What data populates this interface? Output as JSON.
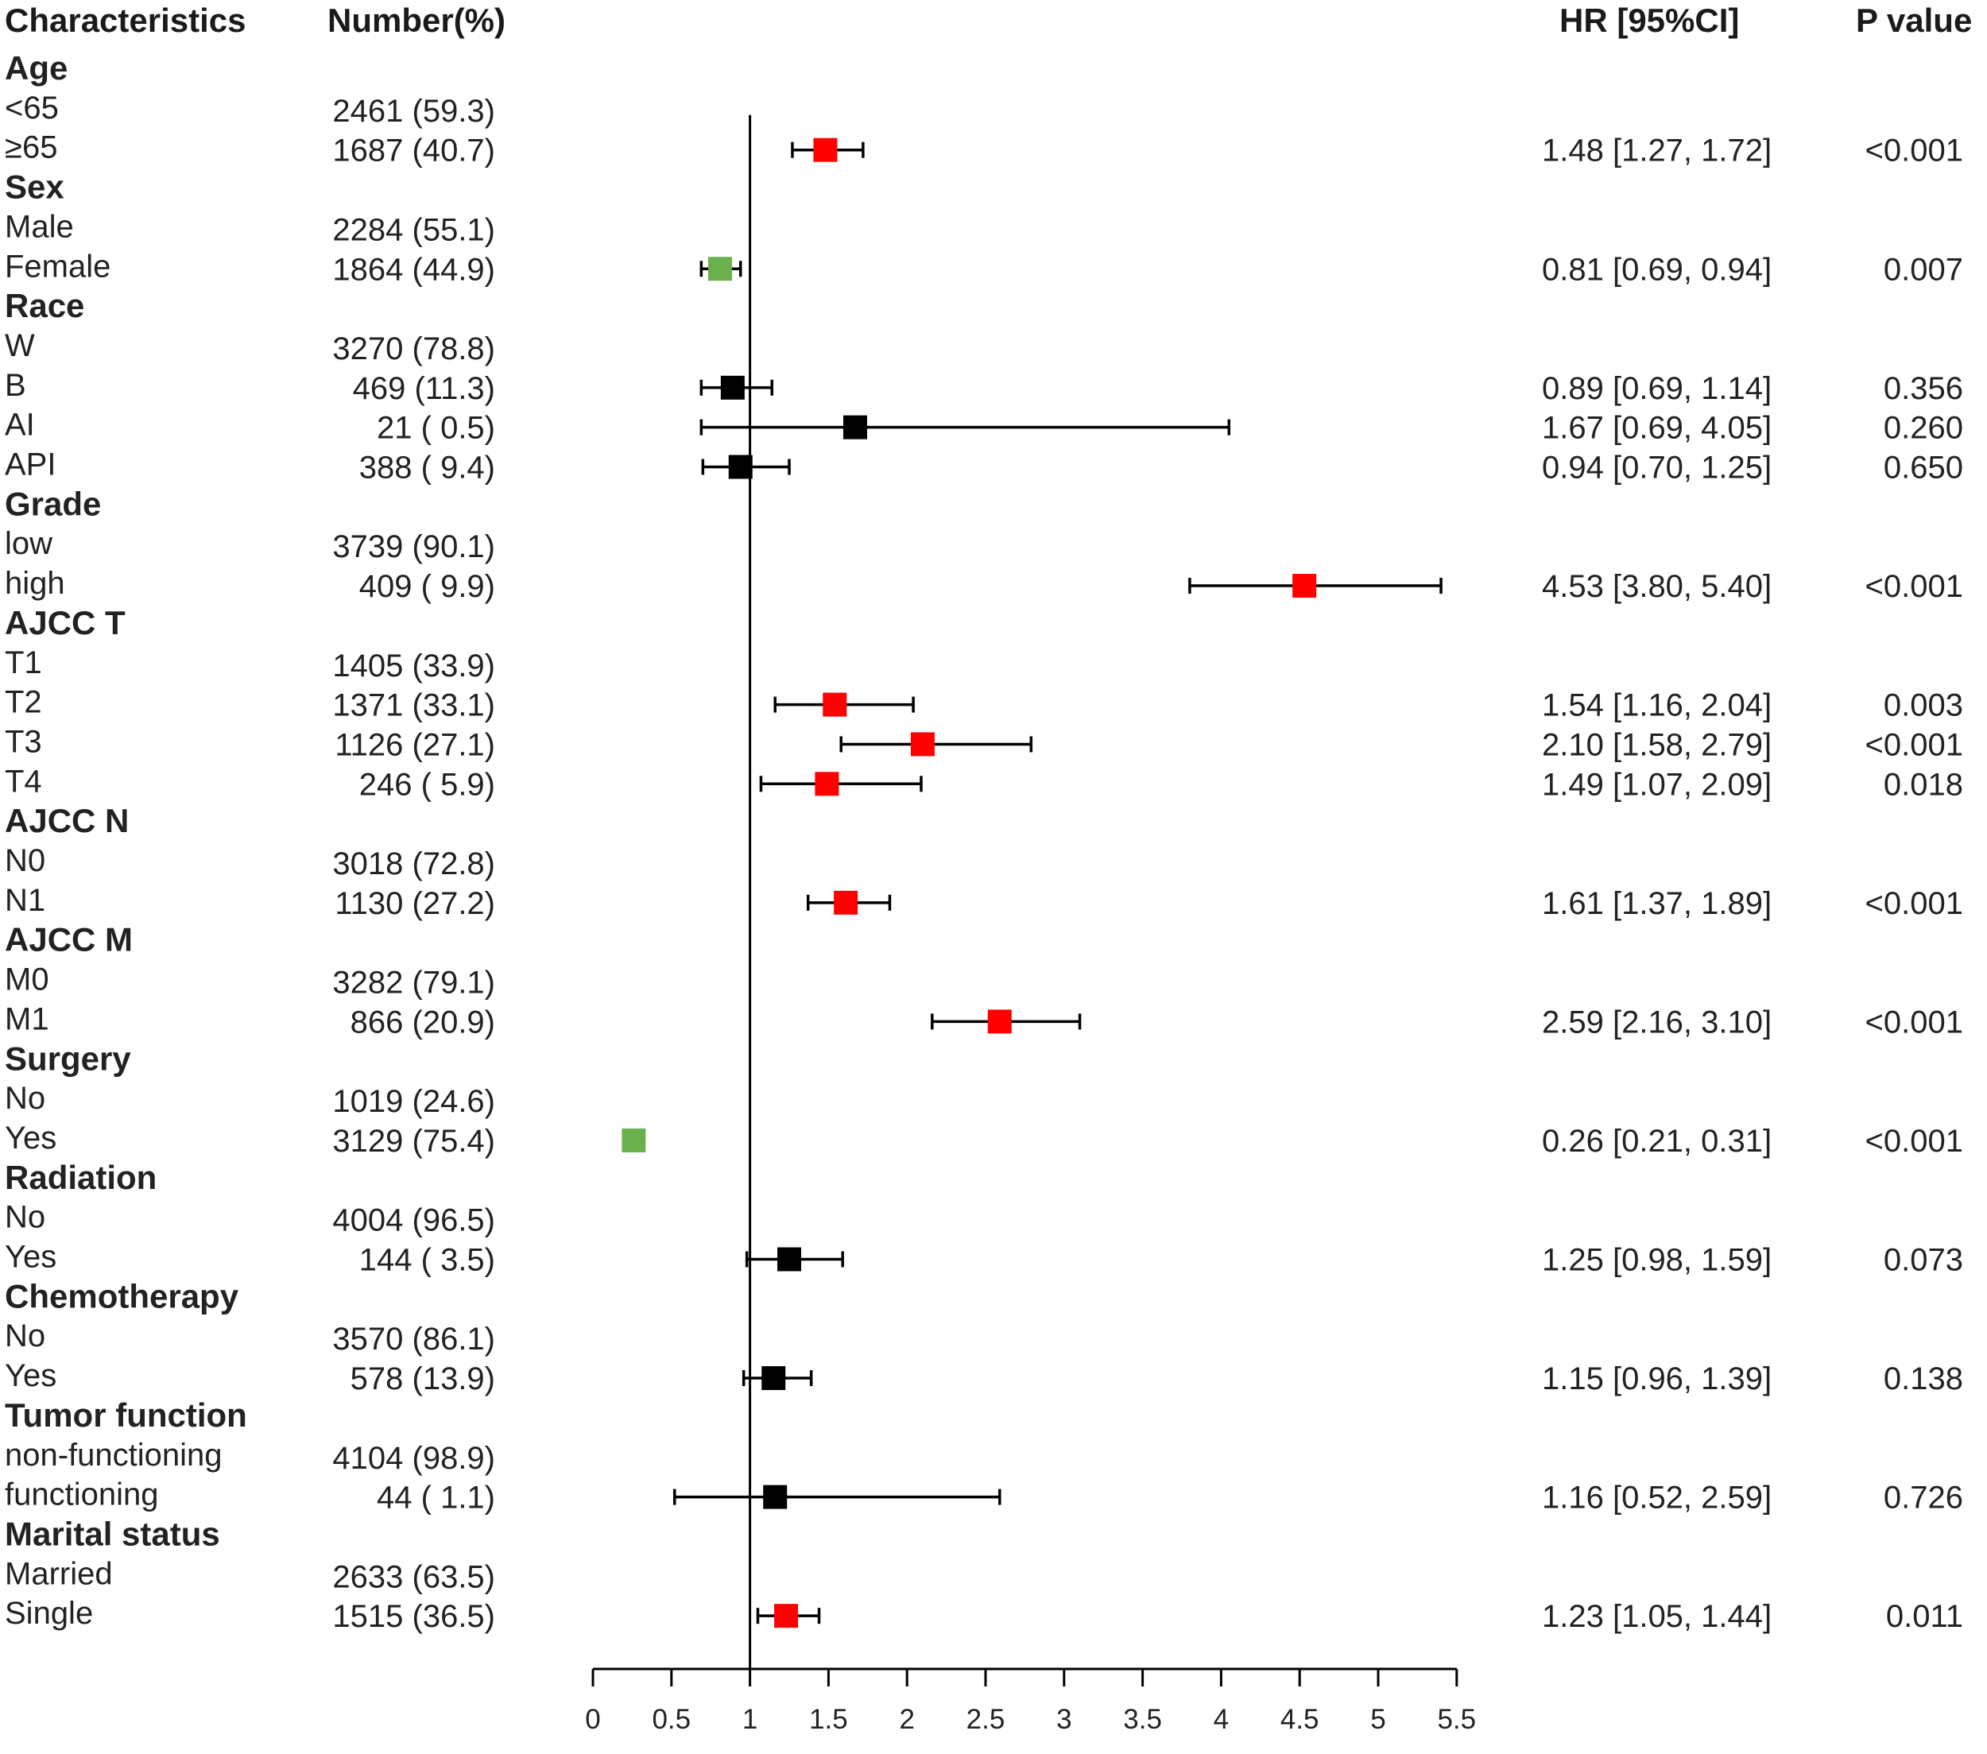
{
  "chart_data": {
    "type": "forest",
    "headers": {
      "characteristics": "Characteristics",
      "number": "Number(%)",
      "hr": "HR [95%CI]",
      "p": "P value"
    },
    "colors": {
      "significant_high": "#ff0000",
      "significant_low": "#6ab04c",
      "not_significant": "#000000",
      "text": "#222222"
    },
    "x_axis": {
      "min": 0,
      "max": 5.5,
      "reference_line": 1,
      "ticks": [
        0,
        0.5,
        1,
        1.5,
        2,
        2.5,
        3,
        3.5,
        4,
        4.5,
        5,
        5.5
      ],
      "tick_labels": [
        "0",
        "0.5",
        "1",
        "1.5",
        "2",
        "2.5",
        "3",
        "3.5",
        "4",
        "4.5",
        "5",
        "5.5"
      ]
    },
    "rows": [
      {
        "type": "group",
        "label": "Age"
      },
      {
        "type": "item",
        "label": "<65",
        "number": "2461 (59.3)"
      },
      {
        "type": "item",
        "label": "≥65",
        "number": "1687 (40.7)",
        "hr": 1.48,
        "lo": 1.27,
        "hi": 1.72,
        "hr_text": "1.48 [1.27, 1.72]",
        "p": "<0.001",
        "color": "red"
      },
      {
        "type": "group",
        "label": "Sex"
      },
      {
        "type": "item",
        "label": "Male",
        "number": "2284 (55.1)"
      },
      {
        "type": "item",
        "label": "Female",
        "number": "1864 (44.9)",
        "hr": 0.81,
        "lo": 0.69,
        "hi": 0.94,
        "hr_text": "0.81 [0.69, 0.94]",
        "p": "0.007",
        "color": "green"
      },
      {
        "type": "group",
        "label": "Race"
      },
      {
        "type": "item",
        "label": "W",
        "number": "3270 (78.8)"
      },
      {
        "type": "item",
        "label": "B",
        "number": "469 (11.3)",
        "hr": 0.89,
        "lo": 0.69,
        "hi": 1.14,
        "hr_text": "0.89 [0.69, 1.14]",
        "p": "0.356",
        "color": "black"
      },
      {
        "type": "item",
        "label": "AI",
        "number": "21 ( 0.5)",
        "hr": 1.67,
        "lo": 0.69,
        "hi": 4.05,
        "hr_text": "1.67 [0.69, 4.05]",
        "p": "0.260",
        "color": "black"
      },
      {
        "type": "item",
        "label": "API",
        "number": "388 ( 9.4)",
        "hr": 0.94,
        "lo": 0.7,
        "hi": 1.25,
        "hr_text": "0.94 [0.70, 1.25]",
        "p": "0.650",
        "color": "black"
      },
      {
        "type": "group",
        "label": "Grade"
      },
      {
        "type": "item",
        "label": "low",
        "number": "3739 (90.1)"
      },
      {
        "type": "item",
        "label": "high",
        "number": "409 ( 9.9)",
        "hr": 4.53,
        "lo": 3.8,
        "hi": 5.4,
        "hr_text": "4.53 [3.80, 5.40]",
        "p": "<0.001",
        "color": "red"
      },
      {
        "type": "group",
        "label": "AJCC T"
      },
      {
        "type": "item",
        "label": "T1",
        "number": "1405 (33.9)"
      },
      {
        "type": "item",
        "label": "T2",
        "number": "1371 (33.1)",
        "hr": 1.54,
        "lo": 1.16,
        "hi": 2.04,
        "hr_text": "1.54 [1.16, 2.04]",
        "p": "0.003",
        "color": "red"
      },
      {
        "type": "item",
        "label": "T3",
        "number": "1126 (27.1)",
        "hr": 2.1,
        "lo": 1.58,
        "hi": 2.79,
        "hr_text": "2.10 [1.58, 2.79]",
        "p": "<0.001",
        "color": "red"
      },
      {
        "type": "item",
        "label": "T4",
        "number": "246 ( 5.9)",
        "hr": 1.49,
        "lo": 1.07,
        "hi": 2.09,
        "hr_text": "1.49 [1.07, 2.09]",
        "p": "0.018",
        "color": "red"
      },
      {
        "type": "group",
        "label": "AJCC N"
      },
      {
        "type": "item",
        "label": "N0",
        "number": "3018 (72.8)"
      },
      {
        "type": "item",
        "label": "N1",
        "number": "1130 (27.2)",
        "hr": 1.61,
        "lo": 1.37,
        "hi": 1.89,
        "hr_text": "1.61 [1.37, 1.89]",
        "p": "<0.001",
        "color": "red"
      },
      {
        "type": "group",
        "label": "AJCC M"
      },
      {
        "type": "item",
        "label": "M0",
        "number": "3282 (79.1)"
      },
      {
        "type": "item",
        "label": "M1",
        "number": "866 (20.9)",
        "hr": 2.59,
        "lo": 2.16,
        "hi": 3.1,
        "hr_text": "2.59 [2.16, 3.10]",
        "p": "<0.001",
        "color": "red"
      },
      {
        "type": "group",
        "label": "Surgery"
      },
      {
        "type": "item",
        "label": "No",
        "number": "1019 (24.6)"
      },
      {
        "type": "item",
        "label": "Yes",
        "number": "3129 (75.4)",
        "hr": 0.26,
        "lo": 0.21,
        "hi": 0.31,
        "hr_text": "0.26 [0.21, 0.31]",
        "p": "<0.001",
        "color": "green"
      },
      {
        "type": "group",
        "label": "Radiation"
      },
      {
        "type": "item",
        "label": "No",
        "number": "4004 (96.5)"
      },
      {
        "type": "item",
        "label": "Yes",
        "number": "144 ( 3.5)",
        "hr": 1.25,
        "lo": 0.98,
        "hi": 1.59,
        "hr_text": "1.25 [0.98, 1.59]",
        "p": "0.073",
        "color": "black"
      },
      {
        "type": "group",
        "label": "Chemotherapy"
      },
      {
        "type": "item",
        "label": "No",
        "number": "3570 (86.1)"
      },
      {
        "type": "item",
        "label": "Yes",
        "number": "578 (13.9)",
        "hr": 1.15,
        "lo": 0.96,
        "hi": 1.39,
        "hr_text": "1.15 [0.96, 1.39]",
        "p": "0.138",
        "color": "black"
      },
      {
        "type": "group",
        "label": "Tumor function"
      },
      {
        "type": "item",
        "label": "non-functioning",
        "number": "4104 (98.9)"
      },
      {
        "type": "item",
        "label": "functioning",
        "number": "44 ( 1.1)",
        "hr": 1.16,
        "lo": 0.52,
        "hi": 2.59,
        "hr_text": "1.16 [0.52, 2.59]",
        "p": "0.726",
        "color": "black"
      },
      {
        "type": "group",
        "label": "Marital status"
      },
      {
        "type": "item",
        "label": "Married",
        "number": "2633 (63.5)"
      },
      {
        "type": "item",
        "label": "Single",
        "number": "1515 (36.5)",
        "hr": 1.23,
        "lo": 1.05,
        "hi": 1.44,
        "hr_text": "1.23 [1.05, 1.44]",
        "p": "0.011",
        "color": "red"
      }
    ]
  }
}
